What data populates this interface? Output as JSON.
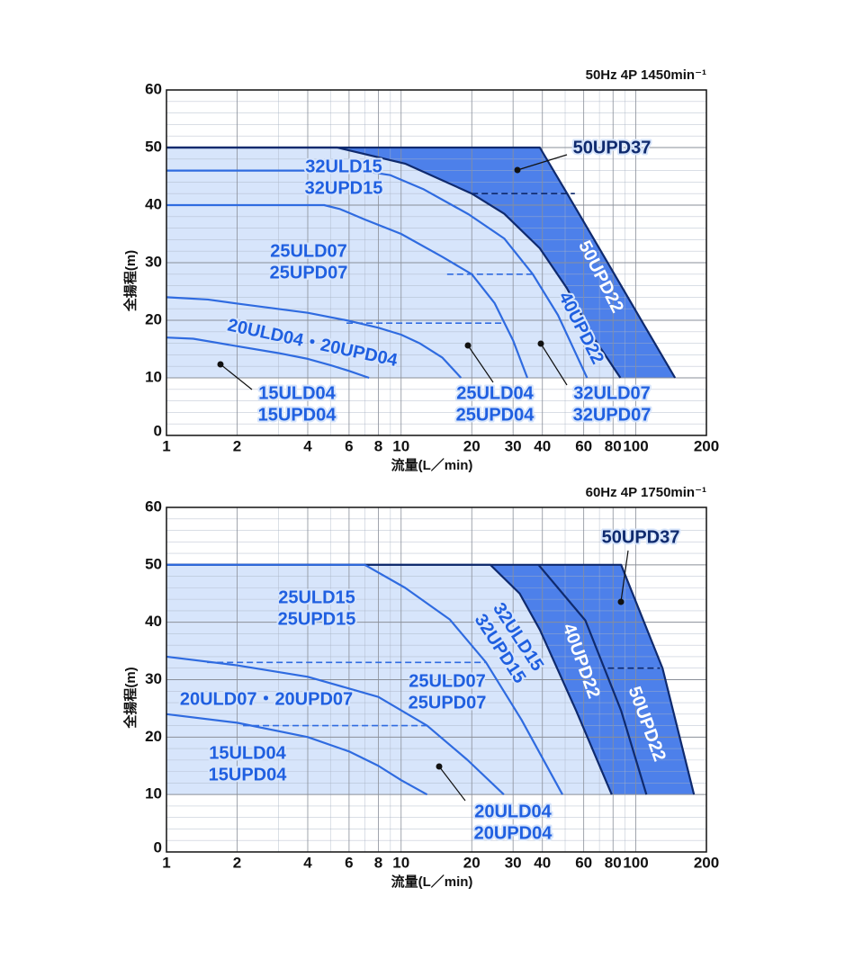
{
  "chart_data": [
    {
      "type": "line",
      "title": "50Hz 4P 1450min⁻¹",
      "xlabel": "流量(L／min)",
      "ylabel": "全揚程(m)",
      "xscale": "log",
      "xlim": [
        1,
        200
      ],
      "xticks": [
        1,
        2,
        4,
        6,
        8,
        10,
        20,
        30,
        40,
        60,
        80,
        100,
        200
      ],
      "xminor": [
        3,
        5,
        7,
        9,
        50,
        70,
        90
      ],
      "ylim": [
        0,
        60
      ],
      "yticks": [
        0,
        10,
        20,
        30,
        40,
        50,
        60
      ],
      "yminor": [
        2,
        4,
        6,
        8,
        12,
        14,
        16,
        18,
        22,
        24,
        26,
        28,
        32,
        34,
        36,
        38,
        42,
        44,
        46,
        48,
        52,
        54,
        56,
        58
      ],
      "grid": true,
      "series": [
        {
          "x": [
            1,
            39,
            51,
            66.5,
            86.6,
            112.8,
            147
          ],
          "values": [
            50,
            50,
            42,
            34,
            26,
            18,
            10
          ],
          "color": "#0f2a6e",
          "fill": "#4d80ea"
        },
        {
          "x": [
            1,
            5.35,
            10.4,
            20,
            27.5,
            39,
            50.8,
            66,
            86
          ],
          "values": [
            50,
            50,
            47.2,
            42,
            38.5,
            32.5,
            25.6,
            17,
            10
          ],
          "color": "#0f2a6e",
          "fill": "#d7e5fb"
        },
        {
          "x": [
            1,
            6.7,
            9,
            12.4,
            19.4,
            27.5,
            36.4,
            46.6,
            62
          ],
          "values": [
            46,
            46,
            45.2,
            42.8,
            38.4,
            34.2,
            28,
            20.9,
            10
          ],
          "color": "#2f6be0"
        },
        {
          "x": [
            1,
            4.7,
            5.5,
            7,
            10,
            15,
            20,
            25,
            30,
            34.5
          ],
          "values": [
            40,
            40,
            39.3,
            37.5,
            35,
            31,
            28,
            23,
            16.5,
            10
          ],
          "color": "#2f6be0"
        },
        {
          "x": [
            1,
            1.5,
            2,
            4,
            6,
            8,
            10,
            12,
            15,
            18
          ],
          "values": [
            24,
            23.6,
            22.9,
            21.3,
            19.9,
            18.7,
            17.5,
            16,
            13.5,
            10
          ],
          "color": "#2f6be0"
        },
        {
          "x": [
            1,
            1.3,
            2,
            3,
            4,
            5,
            6,
            7.3
          ],
          "values": [
            17,
            16.8,
            15.5,
            14.3,
            13.3,
            12.2,
            11.2,
            10
          ],
          "color": "#2f6be0"
        }
      ],
      "dashed_lines": [
        {
          "x": [
            20,
            55
          ],
          "y": 42,
          "color": "#0f2a6e"
        },
        {
          "x": [
            15.7,
            36.4
          ],
          "y": 28,
          "color": "#2f6be0"
        },
        {
          "x": [
            5.85,
            26.8
          ],
          "y": 19.5,
          "color": "#2f6be0"
        }
      ],
      "annotations": [
        {
          "lines": [
            "50UPD37"
          ],
          "color": "#0f2a6e"
        },
        {
          "lines": [
            "32ULD15",
            "32UPD15"
          ],
          "color": "#1f5fe0"
        },
        {
          "lines": [
            "25ULD07",
            "25UPD07"
          ],
          "color": "#1f5fe0"
        },
        {
          "lines": [
            "20ULD04・20UPD04"
          ],
          "color": "#1f5fe0"
        },
        {
          "lines": [
            "40UPD22"
          ],
          "color": "#1f5fe0"
        },
        {
          "lines": [
            "50UPD22"
          ],
          "color": "#ffffff"
        },
        {
          "lines": [
            "15ULD04",
            "15UPD04"
          ],
          "color": "#1f5fe0"
        },
        {
          "lines": [
            "25ULD04",
            "25UPD04"
          ],
          "color": "#1f5fe0"
        },
        {
          "lines": [
            "32ULD07",
            "32UPD07"
          ],
          "color": "#1f5fe0"
        }
      ]
    },
    {
      "type": "line",
      "title": "60Hz 4P 1750min⁻¹",
      "xlabel": "流量(L／min)",
      "ylabel": "全揚程(m)",
      "xscale": "log",
      "xlim": [
        1,
        200
      ],
      "xticks": [
        1,
        2,
        4,
        6,
        8,
        10,
        20,
        30,
        40,
        60,
        80,
        100,
        200
      ],
      "xminor": [
        3,
        5,
        7,
        9,
        50,
        70,
        90
      ],
      "ylim": [
        0,
        60
      ],
      "yticks": [
        0,
        10,
        20,
        30,
        40,
        50,
        60
      ],
      "yminor": [
        2,
        4,
        6,
        8,
        12,
        14,
        16,
        18,
        22,
        24,
        26,
        28,
        32,
        34,
        36,
        38,
        42,
        44,
        46,
        48,
        52,
        54,
        56,
        58
      ],
      "grid": true,
      "series": [
        {
          "x": [
            1,
            86.6,
            130,
            177
          ],
          "values": [
            50,
            50,
            32,
            10
          ],
          "color": "#0f2a6e",
          "fill": "#4d80ea"
        },
        {
          "x": [
            38.5,
            61,
            86.6,
            111
          ],
          "values": [
            50,
            40.3,
            24.6,
            10
          ],
          "color": "#0f2a6e"
        },
        {
          "x": [
            1,
            24,
            32,
            39,
            55.7,
            79
          ],
          "values": [
            50,
            50,
            45,
            38.7,
            24.6,
            10
          ],
          "color": "#0f2a6e",
          "fill": "#d7e5fb"
        },
        {
          "x": [
            1,
            7,
            10.4,
            16.1,
            23,
            32.6,
            48.7
          ],
          "values": [
            50,
            50,
            46,
            40.5,
            33,
            23,
            10
          ],
          "color": "#2f6be0"
        },
        {
          "x": [
            1,
            2,
            4,
            8,
            12.9,
            19.2,
            27.4
          ],
          "values": [
            34,
            32.5,
            30.5,
            27,
            22,
            16,
            10
          ],
          "color": "#2f6be0"
        },
        {
          "x": [
            1,
            2,
            4,
            6,
            8,
            10,
            12.9
          ],
          "values": [
            24,
            22.5,
            20,
            17.5,
            15,
            12.5,
            10
          ],
          "color": "#2f6be0"
        }
      ],
      "dashed_lines": [
        {
          "x": [
            1.49,
            23
          ],
          "y": 33,
          "color": "#2f6be0"
        },
        {
          "x": [
            2.12,
            12.9
          ],
          "y": 22,
          "color": "#2f6be0"
        },
        {
          "x": [
            76,
            127
          ],
          "y": 32,
          "color": "#0f2a6e"
        }
      ],
      "annotations": [
        {
          "lines": [
            "50UPD37"
          ],
          "color": "#0f2a6e"
        },
        {
          "lines": [
            "25ULD15",
            "25UPD15"
          ],
          "color": "#1f5fe0"
        },
        {
          "lines": [
            "32ULD15",
            "32UPD15"
          ],
          "color": "#1f5fe0"
        },
        {
          "lines": [
            "40UPD22"
          ],
          "color": "#ffffff"
        },
        {
          "lines": [
            "50UPD22"
          ],
          "color": "#ffffff"
        },
        {
          "lines": [
            "25ULD07",
            "25UPD07"
          ],
          "color": "#1f5fe0"
        },
        {
          "lines": [
            "20ULD07・20UPD07"
          ],
          "color": "#1f5fe0"
        },
        {
          "lines": [
            "15ULD04",
            "15UPD04"
          ],
          "color": "#1f5fe0"
        },
        {
          "lines": [
            "20ULD04",
            "20UPD04"
          ],
          "color": "#1f5fe0"
        }
      ]
    }
  ]
}
